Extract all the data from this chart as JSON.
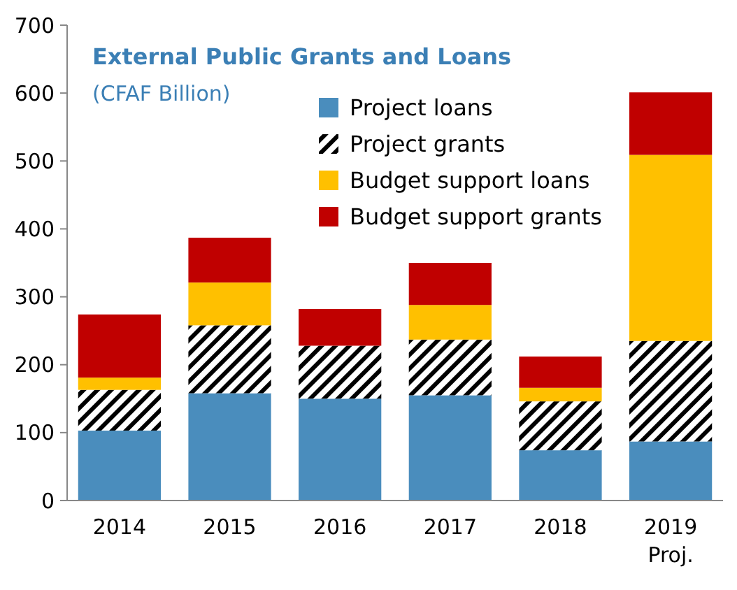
{
  "chart_data": {
    "type": "bar",
    "stacked": true,
    "title": "External Public Grants and Loans",
    "subtitle": "(CFAF Billion)",
    "categories": [
      "2014",
      "2015",
      "2016",
      "2017",
      "2018",
      "2019\nProj."
    ],
    "ylim": [
      0,
      700
    ],
    "yticks": [
      0,
      100,
      200,
      300,
      400,
      500,
      600,
      700
    ],
    "grid": false,
    "legend": "top right",
    "series": [
      {
        "name": "Project loans",
        "color": "#4a8dbd",
        "values": [
          103,
          158,
          150,
          155,
          74,
          87
        ]
      },
      {
        "name": "Project grants",
        "color": "#000000",
        "values": [
          60,
          100,
          78,
          82,
          72,
          148
        ]
      },
      {
        "name": "Budget support loans",
        "color": "#ffc000",
        "values": [
          18,
          63,
          0,
          51,
          20,
          274
        ]
      },
      {
        "name": "Budget support grants",
        "color": "#c00000",
        "values": [
          93,
          66,
          54,
          62,
          46,
          92
        ]
      }
    ]
  }
}
